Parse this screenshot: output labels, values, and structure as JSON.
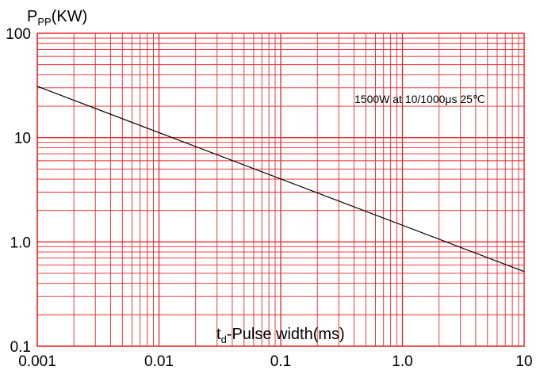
{
  "chart_data": {
    "type": "line",
    "x_scale": "log",
    "y_scale": "log",
    "xlim": [
      0.001,
      10
    ],
    "ylim": [
      0.1,
      100
    ],
    "x_ticks": [
      "0.001",
      "0.01",
      "0.1",
      "1.0",
      "10"
    ],
    "y_ticks": [
      "0.1",
      "1.0",
      "10",
      "100"
    ],
    "ylabel": {
      "main": "P",
      "sub": "PP",
      "unit": "(KW)"
    },
    "xlabel": {
      "main": "t",
      "sub": "d",
      "rest": "-Pulse width(ms)"
    },
    "annotation": "1500W at 10/1000μs 25℃",
    "grid": true,
    "grid_color": "#e8262a",
    "line_color": "#000000",
    "series": [
      {
        "x": [
          0.001,
          10
        ],
        "y": [
          31,
          0.52
        ]
      }
    ]
  }
}
